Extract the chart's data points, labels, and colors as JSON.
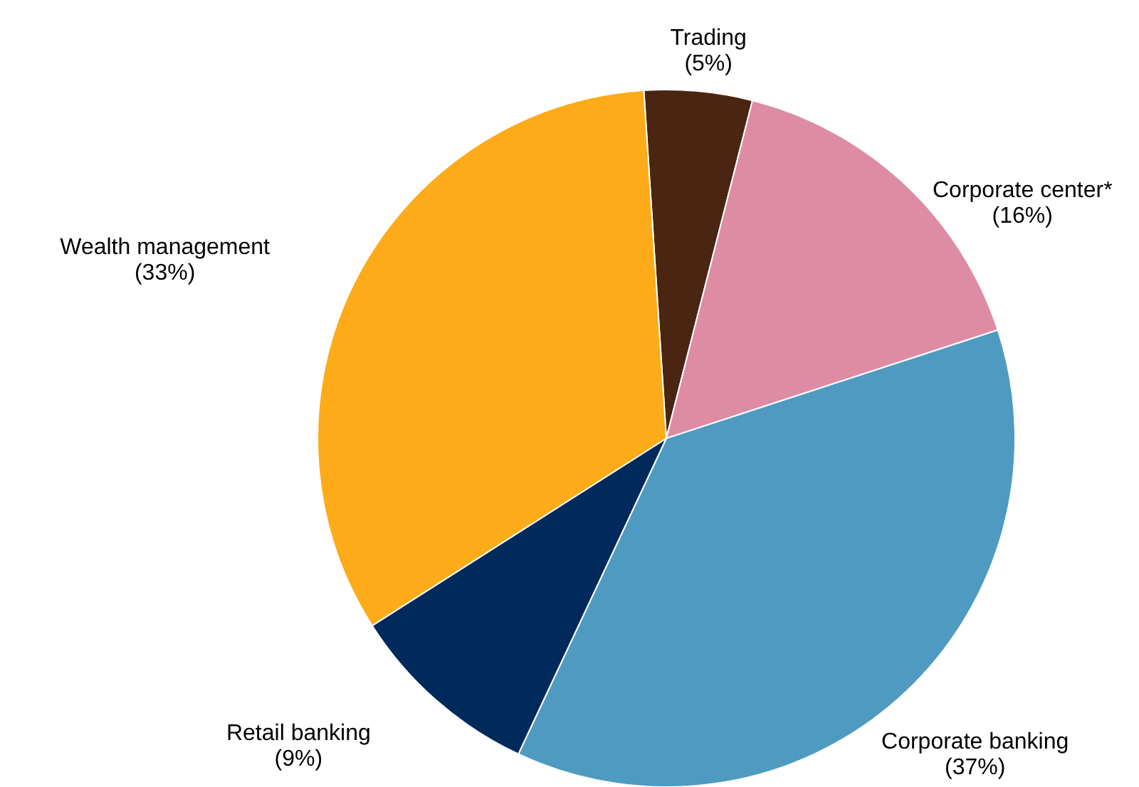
{
  "chart_data": {
    "type": "pie",
    "categories": [
      "Trading",
      "Corporate center*",
      "Corporate banking",
      "Retail banking",
      "Wealth management"
    ],
    "values": [
      5,
      16,
      37,
      9,
      33
    ],
    "value_labels": [
      "(5%)",
      "(16%)",
      "(37%)",
      "(9%)",
      "(33%)"
    ],
    "colors": [
      "#4a2511",
      "#de8ba4",
      "#4f9ac1",
      "#002a5c",
      "#fdab18"
    ]
  }
}
